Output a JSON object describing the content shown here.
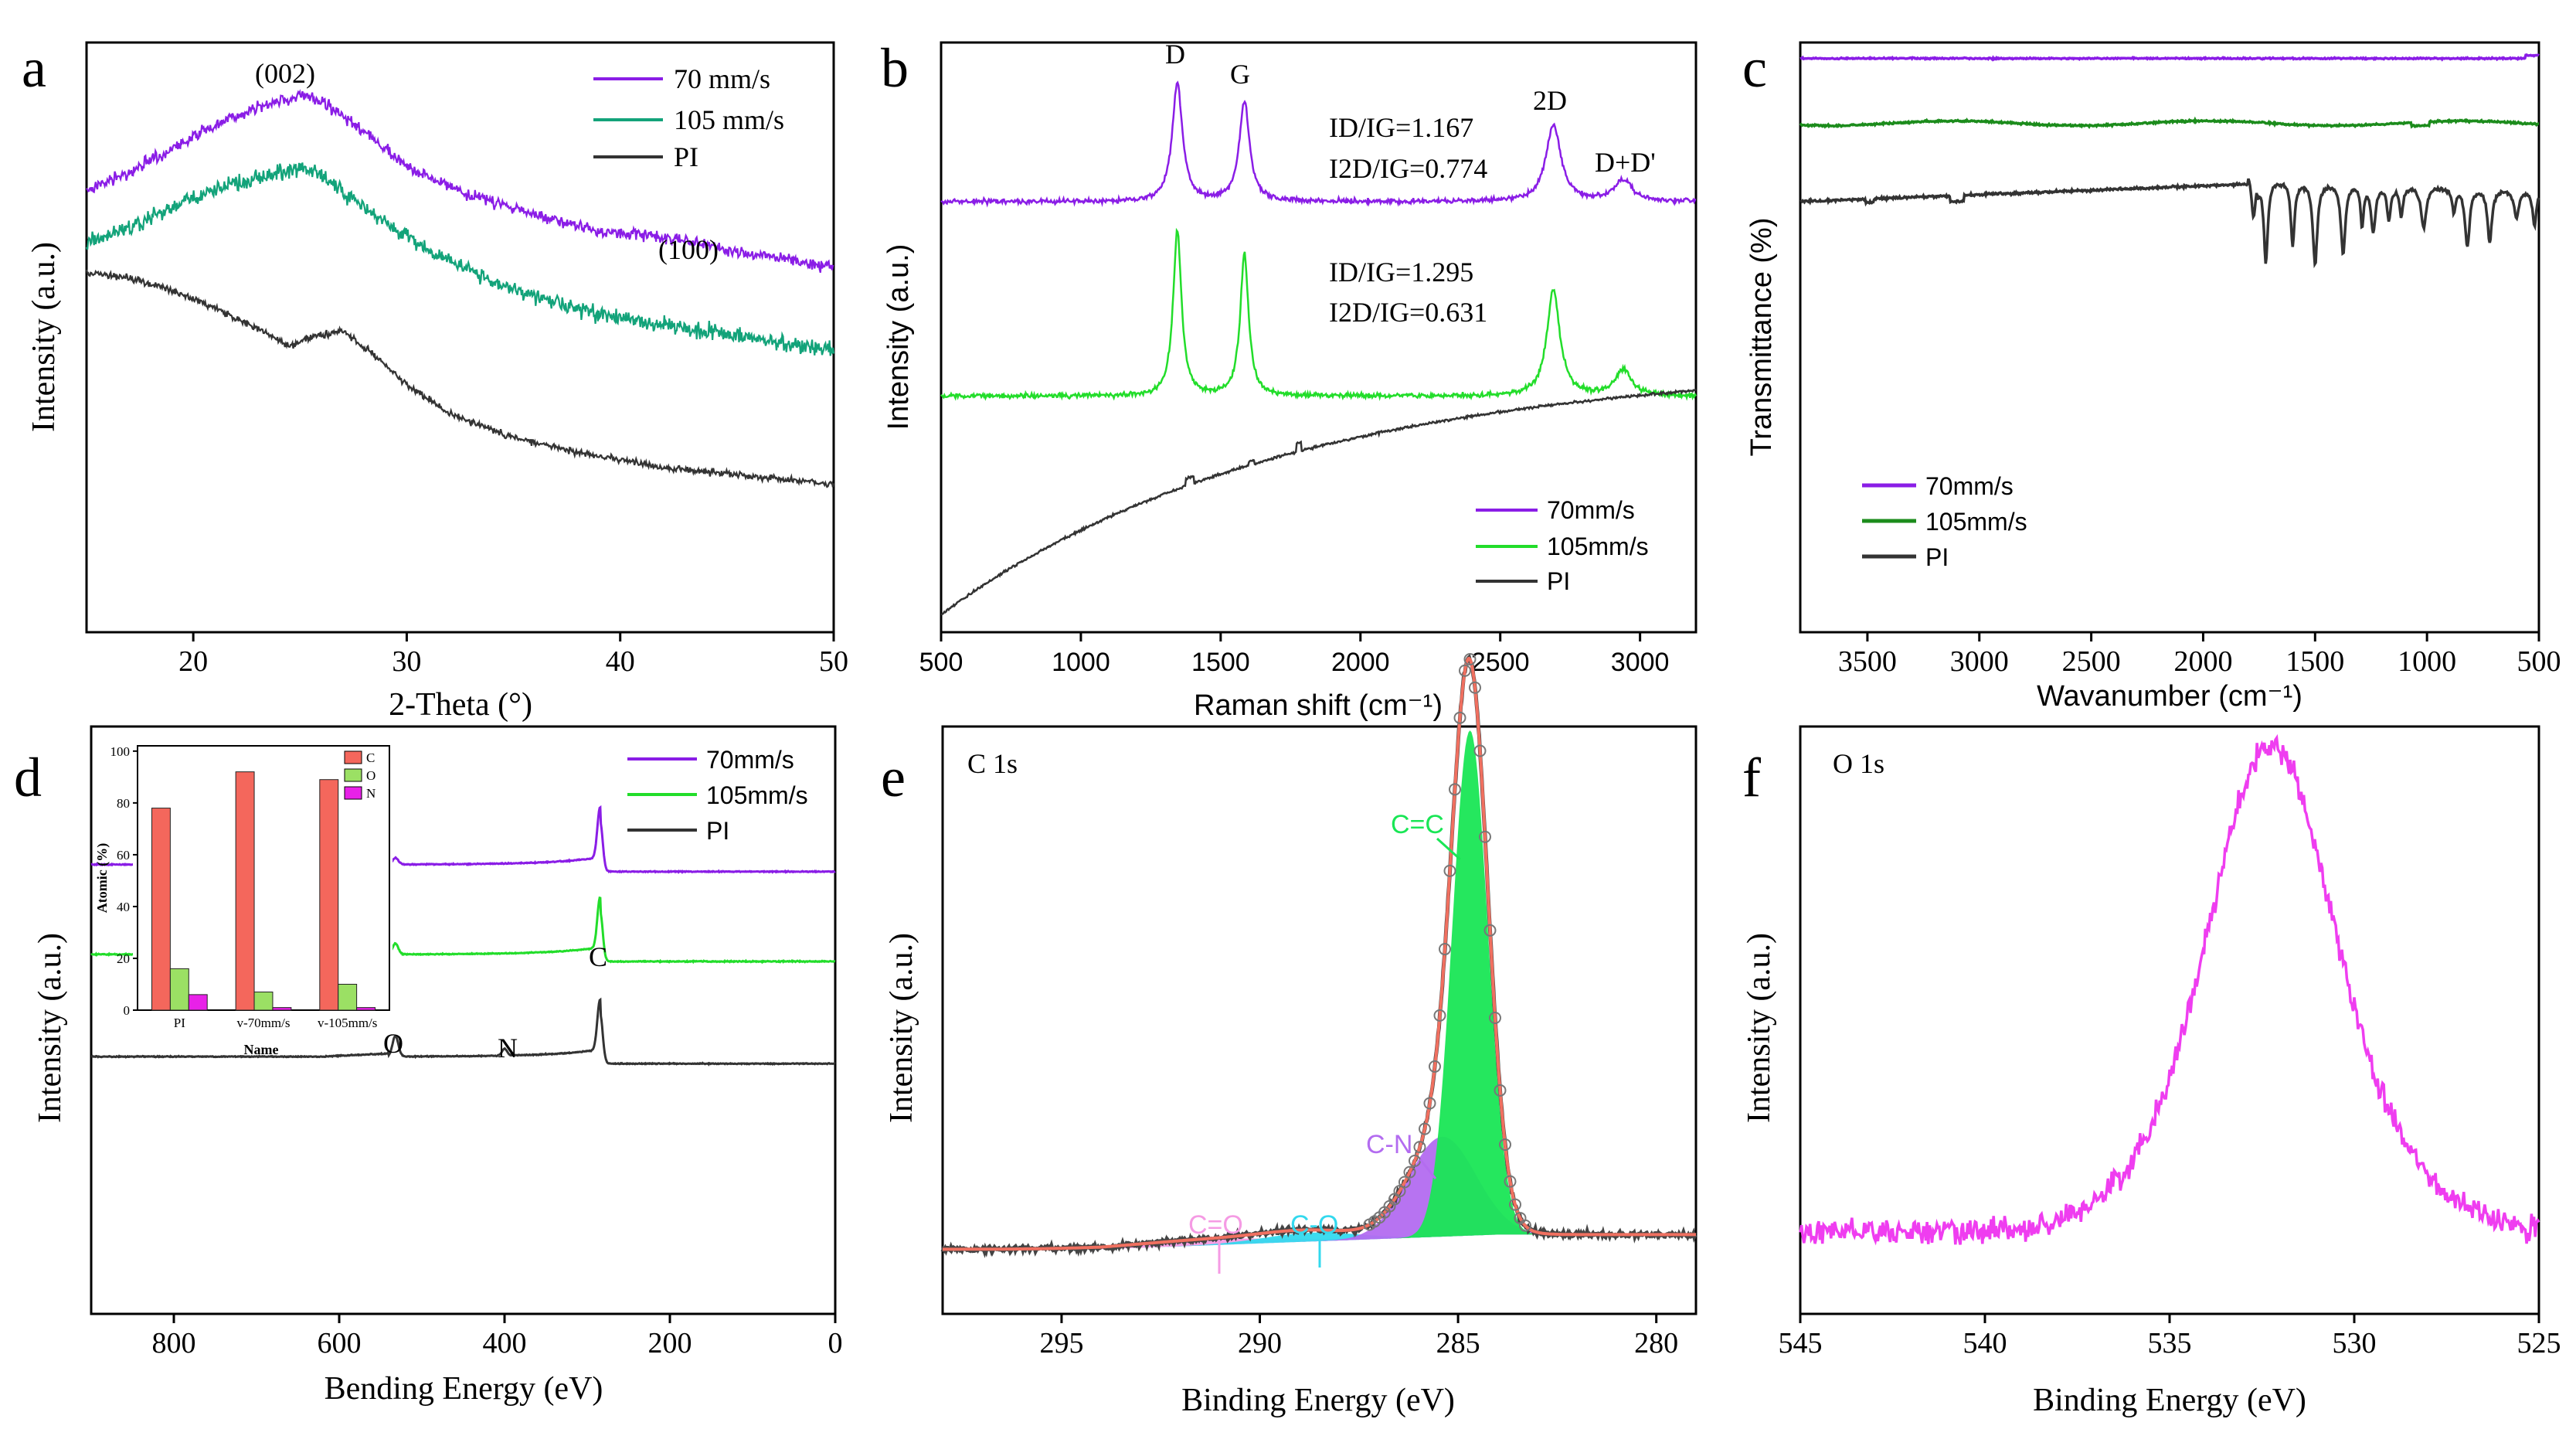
{
  "colors": {
    "purple": "#8a1de6",
    "teal": "#13a37a",
    "green": "#22dd2a",
    "darkgreen": "#1c8c1c",
    "black": "#333333",
    "magenta": "#ef3df0",
    "fit_red": "#f07060",
    "cc_fill": "#19e655",
    "cn_fill": "#b36cf0",
    "co_fill": "#33d9ee",
    "cdo_fill": "#f59be4",
    "inset_c": "#f4675c",
    "inset_o": "#9be064",
    "inset_n": "#e821e8"
  },
  "chart_data": [
    {
      "id": "a",
      "letter": "a",
      "type": "line",
      "xlabel": "2-Theta (°)",
      "ylabel": "Intensity (a.u.)",
      "xlim": [
        15,
        50
      ],
      "xticks": [
        "20",
        "30",
        "40",
        "50"
      ],
      "xtick_values": [
        20,
        30,
        40,
        50
      ],
      "legend": [
        "70 mm/s",
        "105 mm/s",
        "PI"
      ],
      "annotations": [
        "(002)",
        "(100)"
      ],
      "series": [
        {
          "name": "70 mm/s",
          "color": "purple",
          "noise": 2.5,
          "points": [
            [
              15,
              0.5
            ],
            [
              17,
              0.44
            ],
            [
              19,
              0.36
            ],
            [
              21,
              0.28
            ],
            [
              23,
              0.22
            ],
            [
              25,
              0.18
            ],
            [
              26,
              0.2
            ],
            [
              28,
              0.3
            ],
            [
              30,
              0.42
            ],
            [
              33,
              0.52
            ],
            [
              36,
              0.58
            ],
            [
              39,
              0.64
            ],
            [
              42,
              0.66
            ],
            [
              45,
              0.7
            ],
            [
              48,
              0.74
            ],
            [
              50,
              0.76
            ]
          ]
        },
        {
          "name": "105 mm/s",
          "color": "teal",
          "noise": 3.5,
          "points": [
            [
              15,
              0.68
            ],
            [
              17,
              0.63
            ],
            [
              19,
              0.56
            ],
            [
              21,
              0.5
            ],
            [
              23,
              0.46
            ],
            [
              25,
              0.42
            ],
            [
              26,
              0.45
            ],
            [
              28,
              0.56
            ],
            [
              30,
              0.66
            ],
            [
              33,
              0.78
            ],
            [
              36,
              0.86
            ],
            [
              39,
              0.92
            ],
            [
              42,
              0.96
            ],
            [
              45,
              0.99
            ],
            [
              48,
              1.02
            ],
            [
              50,
              1.04
            ]
          ]
        },
        {
          "name": "PI",
          "color": "black",
          "noise": 1.5,
          "points": [
            [
              15,
              0.78
            ],
            [
              17,
              0.8
            ],
            [
              19,
              0.84
            ],
            [
              21,
              0.9
            ],
            [
              23,
              0.97
            ],
            [
              24.5,
              1.03
            ],
            [
              25.5,
              1.0
            ],
            [
              27,
              0.98
            ],
            [
              28.5,
              1.06
            ],
            [
              30,
              1.16
            ],
            [
              32,
              1.26
            ],
            [
              35,
              1.34
            ],
            [
              38,
              1.39
            ],
            [
              42,
              1.44
            ],
            [
              46,
              1.47
            ],
            [
              50,
              1.5
            ]
          ]
        }
      ]
    },
    {
      "id": "b",
      "letter": "b",
      "type": "line",
      "xlabel": "Raman shift (cm⁻¹)",
      "ylabel": "Intensity (a.u.)",
      "xlim": [
        500,
        3200
      ],
      "xticks": [
        "500",
        "1000",
        "1500",
        "2000",
        "2500",
        "3000"
      ],
      "xtick_values": [
        500,
        1000,
        1500,
        2000,
        2500,
        3000
      ],
      "legend": [
        "70mm/s",
        "105mm/s",
        "PI"
      ],
      "peak_labels": [
        "D",
        "G",
        "2D",
        "D+D'"
      ],
      "ratios_70": [
        "ID/IG=1.167",
        "I2D/IG=0.774"
      ],
      "ratios_105": [
        "ID/IG=1.295",
        "I2D/IG=0.631"
      ],
      "series": [
        {
          "name": "70mm/s",
          "color": "purple",
          "base": 0.27,
          "peaks": [
            [
              1345,
              0.2,
              22
            ],
            [
              1585,
              0.17,
              22
            ],
            [
              2690,
              0.13,
              32
            ],
            [
              2940,
              0.035,
              40
            ]
          ]
        },
        {
          "name": "105mm/s",
          "color": "green",
          "base": 0.6,
          "peaks": [
            [
              1345,
              0.28,
              18
            ],
            [
              1585,
              0.24,
              18
            ],
            [
              2690,
              0.18,
              28
            ],
            [
              2940,
              0.045,
              35
            ]
          ]
        },
        {
          "name": "PI",
          "color": "black"
        }
      ]
    },
    {
      "id": "c",
      "letter": "c",
      "type": "line",
      "xlabel": "Wavanumber (cm⁻¹)",
      "ylabel": "Transmittance (%)",
      "xlim": [
        3800,
        500
      ],
      "xticks": [
        "3500",
        "3000",
        "2500",
        "2000",
        "1500",
        "1000",
        "500"
      ],
      "xtick_values": [
        3500,
        3000,
        2500,
        2000,
        1500,
        1000,
        500
      ],
      "legend": [
        "70mm/s",
        "105mm/s",
        "PI"
      ],
      "series": [
        {
          "name": "70mm/s",
          "color": "purple"
        },
        {
          "name": "105mm/s",
          "color": "darkgreen"
        },
        {
          "name": "PI",
          "color": "black"
        }
      ]
    },
    {
      "id": "d",
      "letter": "d",
      "type": "line",
      "xlabel": "Bending Energy (eV)",
      "ylabel": "Intensity (a.u.)",
      "xlim": [
        900,
        0
      ],
      "xticks": [
        "800",
        "600",
        "400",
        "200",
        "0"
      ],
      "xtick_values": [
        800,
        600,
        400,
        200,
        0
      ],
      "legend": [
        "70mm/s",
        "105mm/s",
        "PI"
      ],
      "peak_labels": [
        "O",
        "N",
        "C"
      ],
      "series": [
        {
          "name": "70mm/s",
          "color": "purple"
        },
        {
          "name": "105mm/s",
          "color": "green"
        },
        {
          "name": "PI",
          "color": "black"
        }
      ],
      "inset": {
        "type": "bar",
        "xlabel": "Name",
        "ylabel": "Atomic (%)",
        "ylim": [
          0,
          100
        ],
        "yticks": [
          "0",
          "20",
          "40",
          "60",
          "80",
          "100"
        ],
        "categories": [
          "PI",
          "v-70mm/s",
          "v-105mm/s"
        ],
        "legend": [
          "C",
          "O",
          "N"
        ],
        "series": [
          {
            "name": "C",
            "color": "inset_c",
            "values": [
              78,
              92,
              89
            ]
          },
          {
            "name": "O",
            "color": "inset_o",
            "values": [
              16,
              7,
              10
            ]
          },
          {
            "name": "N",
            "color": "inset_n",
            "values": [
              6,
              1,
              1
            ]
          }
        ]
      }
    },
    {
      "id": "e",
      "letter": "e",
      "type": "area",
      "title": "C 1s",
      "xlabel": "Binding Energy (eV)",
      "ylabel": "Intensity (a.u.)",
      "xlim": [
        298,
        279
      ],
      "xticks": [
        "295",
        "290",
        "285",
        "280"
      ],
      "xtick_values": [
        295,
        290,
        285,
        280
      ],
      "components": [
        {
          "name": "C=C",
          "color": "cc_fill",
          "center": 284.7,
          "height": 0.86,
          "width": 0.45
        },
        {
          "name": "C-N",
          "color": "cn_fill",
          "center": 285.4,
          "height": 0.17,
          "width": 0.85
        },
        {
          "name": "C-O",
          "color": "co_fill",
          "center": 288.7,
          "height": 0.015,
          "width": 1.2
        },
        {
          "name": "C=O",
          "color": "cdo_fill",
          "center": 291.2,
          "height": 0.01,
          "width": 2.0
        }
      ]
    },
    {
      "id": "f",
      "letter": "f",
      "type": "line",
      "title": "O 1s",
      "xlabel": "Binding Energy (eV)",
      "ylabel": "Intensity (a.u.)",
      "xlim": [
        545,
        525
      ],
      "xticks": [
        "545",
        "540",
        "535",
        "530",
        "525"
      ],
      "xtick_values": [
        545,
        540,
        535,
        530,
        525
      ],
      "series": [
        {
          "name": "O 1s",
          "color": "magenta",
          "center": 532.3,
          "height": 0.83,
          "width": 1.8
        }
      ]
    }
  ]
}
